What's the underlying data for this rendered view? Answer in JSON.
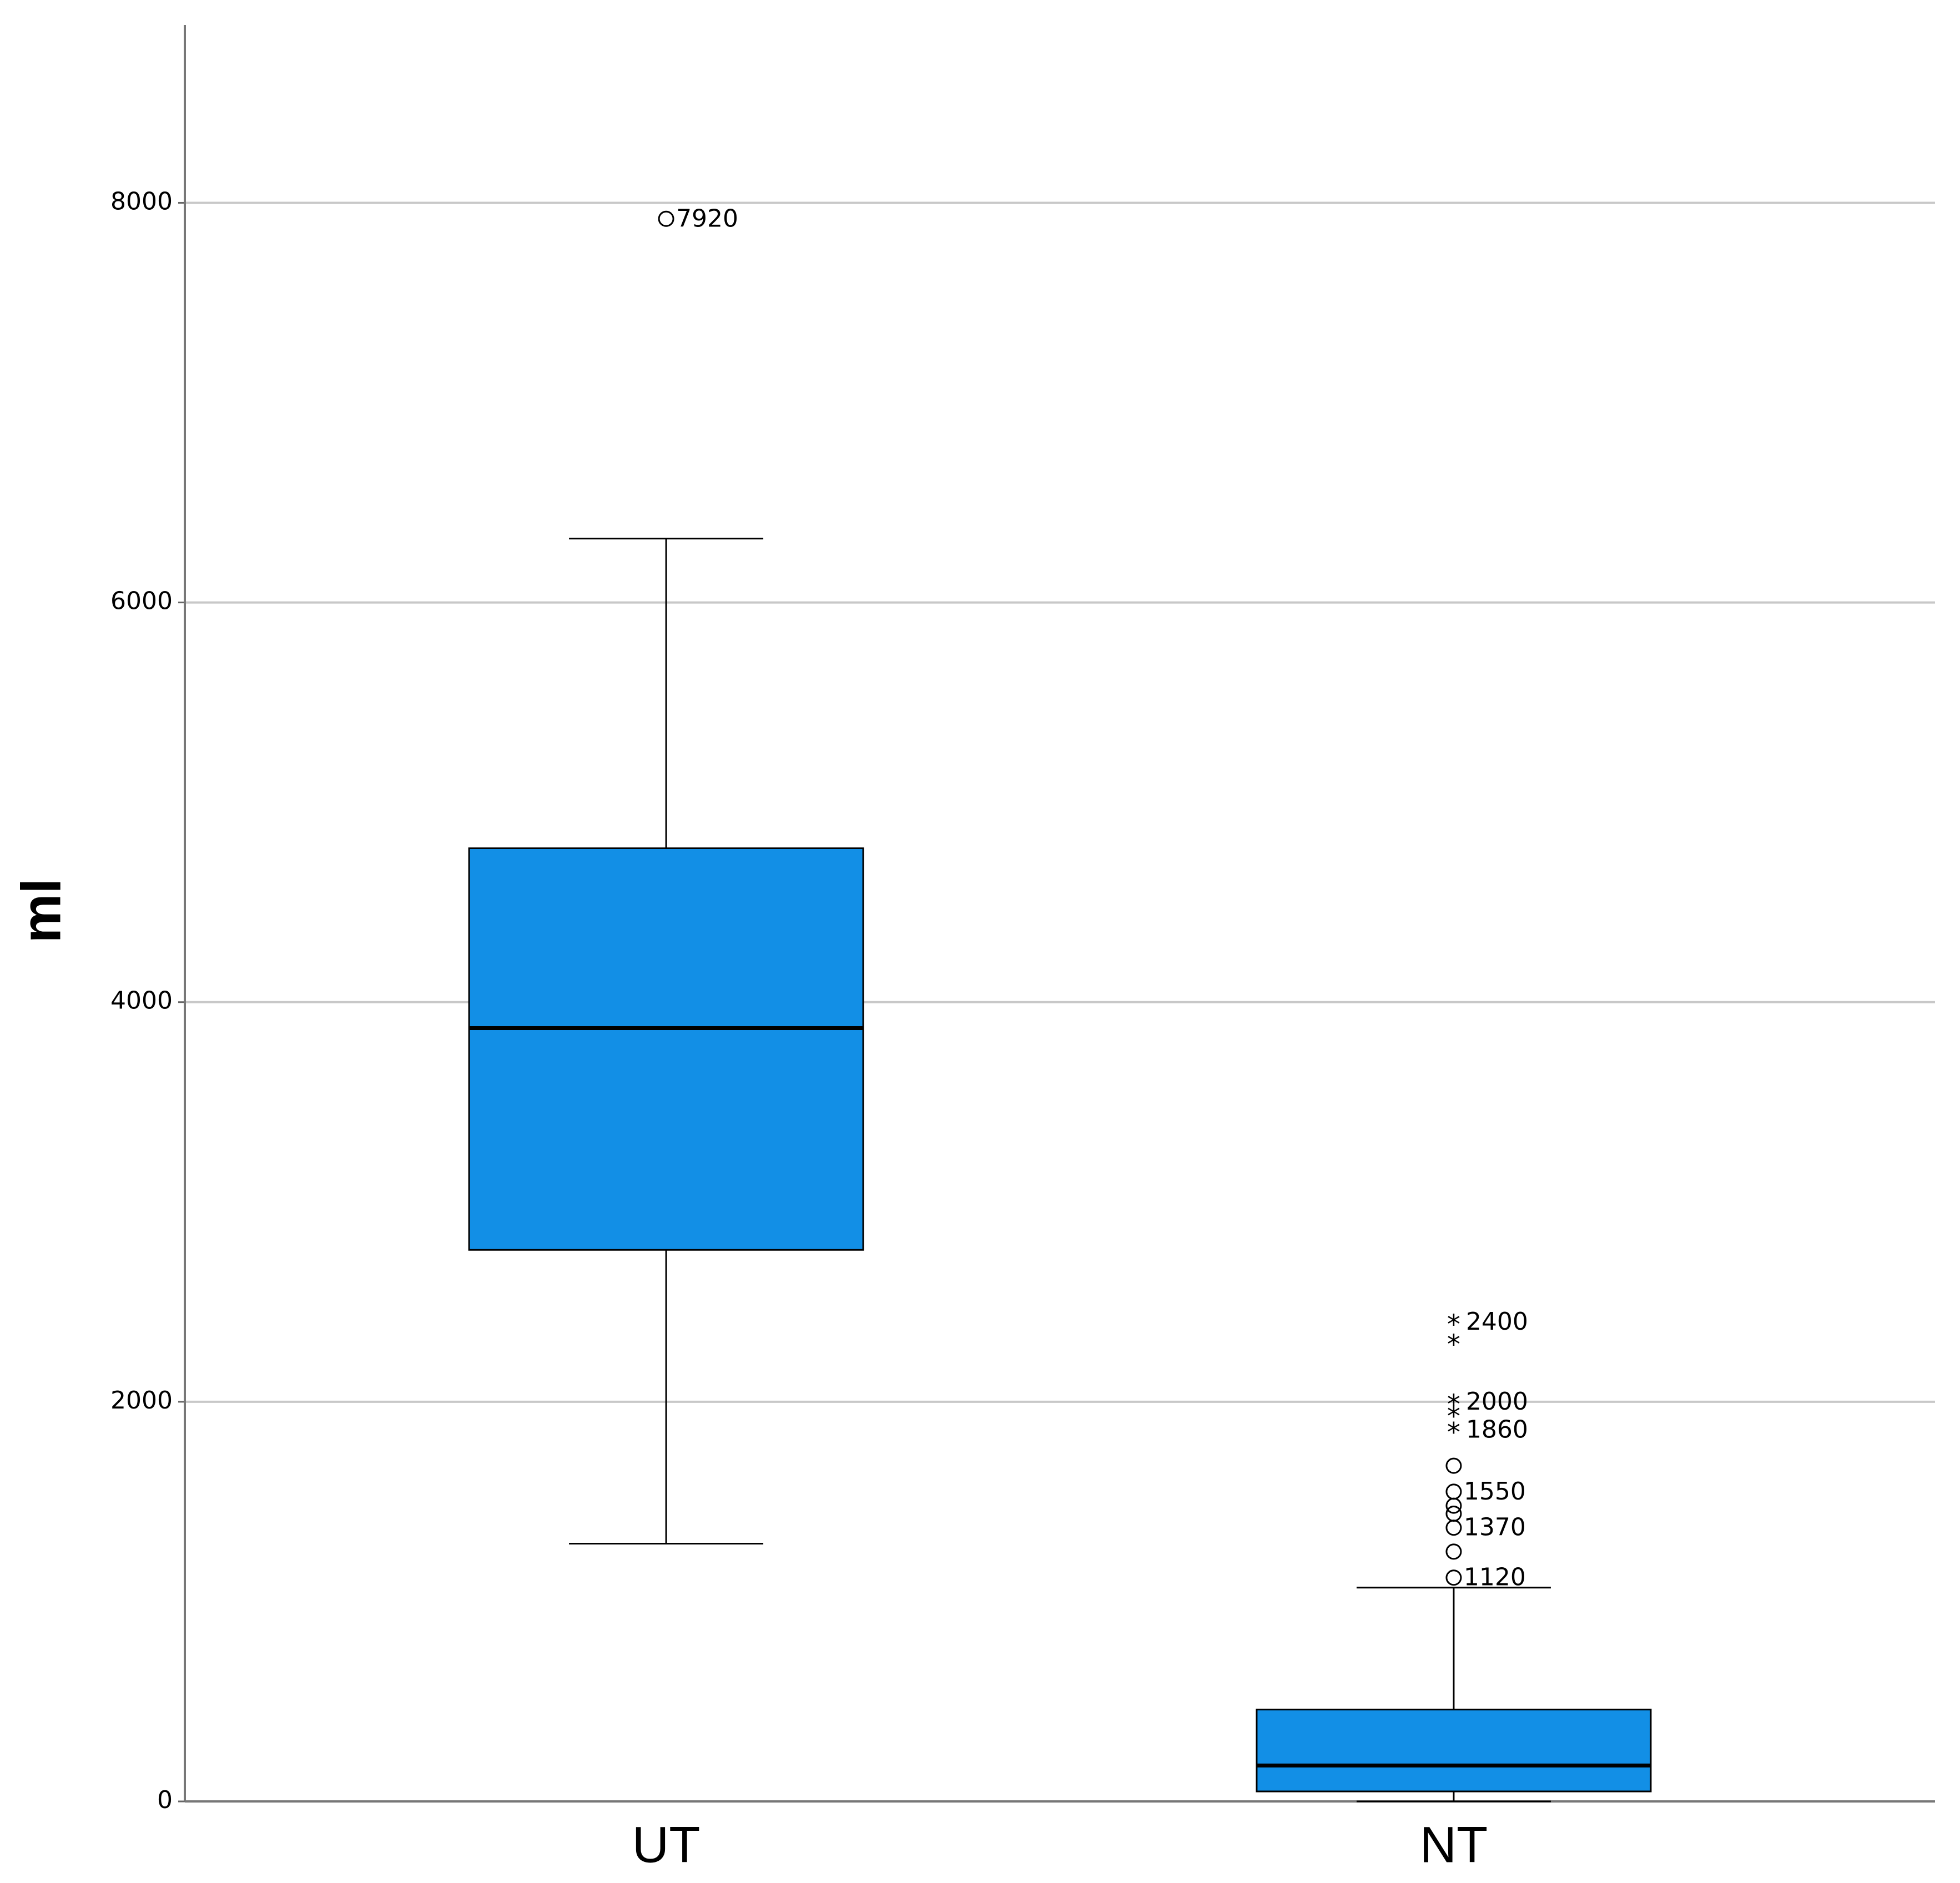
{
  "chart_data": {
    "type": "box",
    "y_label": "ml",
    "categories": [
      "UT",
      "NT"
    ],
    "color": "#128fe6",
    "ylim": [
      0,
      8890
    ],
    "yticks": [
      0,
      2000,
      4000,
      6000,
      8000
    ],
    "grid": true,
    "boxes": [
      {
        "low": 1290,
        "q1": 2760,
        "median": 3870,
        "q3": 4770,
        "high": 6320,
        "outliers": [
          {
            "value": 7920,
            "labeled": true
          }
        ],
        "extremes": []
      },
      {
        "low": 0,
        "q1": 50,
        "median": 180,
        "q3": 460,
        "high": 1070,
        "outliers": [
          {
            "value": 1680,
            "labeled": false
          },
          {
            "value": 1550,
            "labeled": true
          },
          {
            "value": 1480,
            "labeled": false
          },
          {
            "value": 1440,
            "labeled": false
          },
          {
            "value": 1370,
            "labeled": true
          },
          {
            "value": 1250,
            "labeled": false
          },
          {
            "value": 1120,
            "labeled": true
          }
        ],
        "extremes": [
          {
            "value": 2400,
            "labeled": true
          },
          {
            "value": 2300,
            "labeled": false
          },
          {
            "value": 2000,
            "labeled": true
          },
          {
            "value": 1940,
            "labeled": false
          },
          {
            "value": 1860,
            "labeled": true
          }
        ]
      }
    ]
  }
}
